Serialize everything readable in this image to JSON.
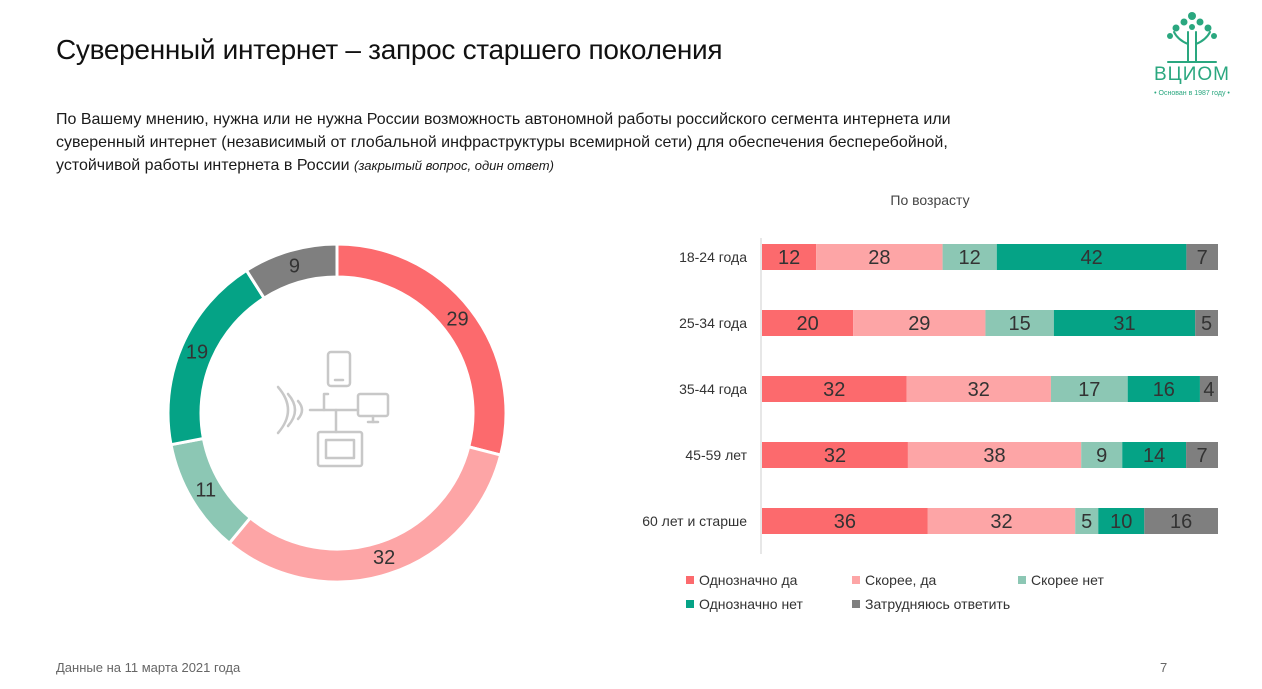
{
  "slide": {
    "title": "Суверенный интернет – запрос старшего поколения",
    "question": "По Вашему мнению, нужна или не нужна России возможность автономной работы российского сегмента интернета или суверенный интернет (независимый от глобальной инфраструктуры всемирной сети) для обеспечения бесперебойной, устойчивой работы интернета в России",
    "question_note": "(закрытый вопрос, один ответ)",
    "footer": "Данные на 11 марта 2021 года",
    "page_number": "7"
  },
  "logo": {
    "name": "ВЦИОМ",
    "subtitle": "• Основан в 1987 году •",
    "color": "#2aa77f"
  },
  "colors": {
    "definitely_yes": "#fc6a6d",
    "rather_yes": "#fda5a6",
    "rather_no": "#8cc7b4",
    "definitely_no": "#05a386",
    "hard_to_say": "#7f7f7f"
  },
  "chart_data": [
    {
      "type": "pie",
      "variant": "donut",
      "center_icon": "devices-icon",
      "slices": [
        {
          "key": "definitely_yes",
          "value": 29
        },
        {
          "key": "rather_yes",
          "value": 32
        },
        {
          "key": "rather_no",
          "value": 11
        },
        {
          "key": "definitely_no",
          "value": 19
        },
        {
          "key": "hard_to_say",
          "value": 9
        }
      ]
    },
    {
      "type": "bar",
      "orientation": "horizontal",
      "stacked": "100%",
      "title": "По возрасту",
      "categories": [
        "18-24 года",
        "25-34 года",
        "35-44 года",
        "45-59 лет",
        "60 лет и старше"
      ],
      "series": [
        {
          "key": "definitely_yes",
          "name": "Однозначно да",
          "values": [
            12,
            20,
            32,
            32,
            36
          ]
        },
        {
          "key": "rather_yes",
          "name": "Скорее, да",
          "values": [
            28,
            29,
            32,
            38,
            32
          ]
        },
        {
          "key": "rather_no",
          "name": "Скорее нет",
          "values": [
            12,
            15,
            17,
            9,
            5
          ]
        },
        {
          "key": "definitely_no",
          "name": "Однозначно нет",
          "values": [
            42,
            31,
            16,
            14,
            10
          ]
        },
        {
          "key": "hard_to_say",
          "name": "Затрудняюсь ответить",
          "values": [
            7,
            5,
            4,
            7,
            16
          ]
        }
      ],
      "legend_position": "bottom",
      "grid": false
    }
  ]
}
